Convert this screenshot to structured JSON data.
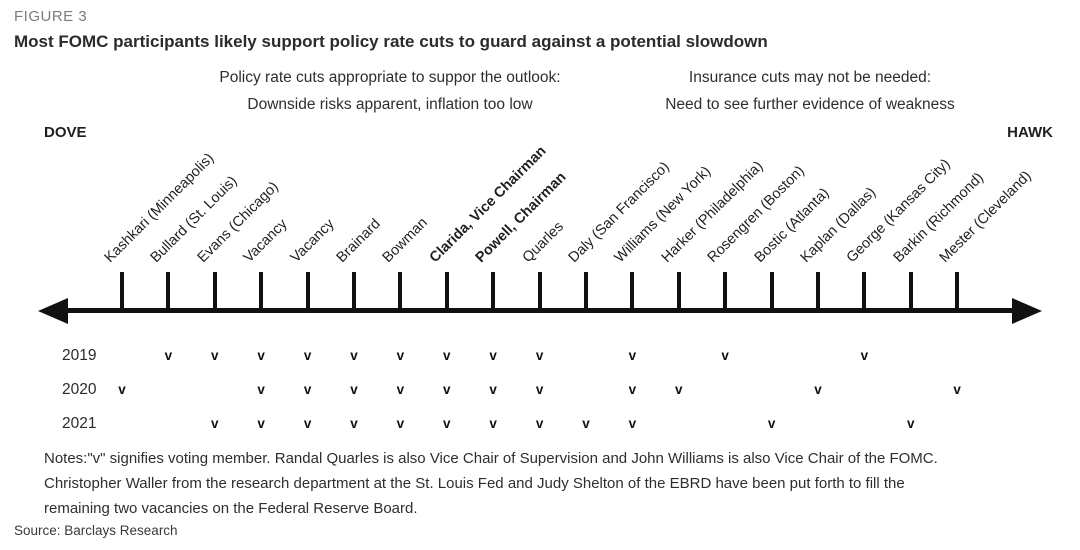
{
  "figure_label": "FIGURE 3",
  "title": "Most FOMC participants likely support policy rate cuts to guard against a potential slowdown",
  "annotations": {
    "left": {
      "line1": "Policy rate cuts appropriate to suppor the outlook:",
      "line2": "Downside risks apparent, inflation too low"
    },
    "right": {
      "line1": "Insurance cuts may not be needed:",
      "line2": "Need to see further evidence of weakness"
    }
  },
  "chart_data": {
    "type": "table",
    "title": "FOMC participants ordered on a dove-to-hawk policy spectrum with voting membership by year",
    "axis": {
      "left_label": "DOVE",
      "right_label": "HAWK"
    },
    "vote_symbol": "v",
    "participants": [
      {
        "label": "Kashkari (Minneapolis)",
        "bold": false
      },
      {
        "label": "Bullard (St. Louis)",
        "bold": false
      },
      {
        "label": "Evans (Chicago)",
        "bold": false
      },
      {
        "label": "Vacancy",
        "bold": false
      },
      {
        "label": "Vacancy",
        "bold": false
      },
      {
        "label": "Brainard",
        "bold": false
      },
      {
        "label": "Bowman",
        "bold": false
      },
      {
        "label": "Clarida, Vice Chairman",
        "bold": true
      },
      {
        "label": "Powell, Chairman",
        "bold": true
      },
      {
        "label": "Quarles",
        "bold": false
      },
      {
        "label": "Daly (San Francisco)",
        "bold": false
      },
      {
        "label": "Williams (New York)",
        "bold": false
      },
      {
        "label": "Harker (Philadelphia)",
        "bold": false
      },
      {
        "label": "Rosengren (Boston)",
        "bold": false
      },
      {
        "label": "Bostic (Atlanta)",
        "bold": false
      },
      {
        "label": "Kaplan (Dallas)",
        "bold": false
      },
      {
        "label": "George (Kansas City)",
        "bold": false
      },
      {
        "label": "Barkin (Richmond)",
        "bold": false
      },
      {
        "label": "Mester (Cleveland)",
        "bold": false
      }
    ],
    "series": [
      {
        "name": "2019",
        "values": [
          0,
          1,
          1,
          1,
          1,
          1,
          1,
          1,
          1,
          1,
          0,
          1,
          0,
          1,
          0,
          0,
          1,
          0,
          0
        ]
      },
      {
        "name": "2020",
        "values": [
          1,
          0,
          0,
          1,
          1,
          1,
          1,
          1,
          1,
          1,
          0,
          1,
          1,
          0,
          0,
          1,
          0,
          0,
          1
        ]
      },
      {
        "name": "2021",
        "values": [
          0,
          0,
          1,
          1,
          1,
          1,
          1,
          1,
          1,
          1,
          1,
          1,
          0,
          0,
          1,
          0,
          0,
          1,
          0
        ]
      }
    ]
  },
  "notes": {
    "lines": [
      "Notes:\"v\" signifies voting member. Randal Quarles is also Vice Chair of Supervision and John Williams is also Vice Chair of the FOMC.",
      "Christopher Waller from the research department at the St. Louis Fed and Judy Shelton of the EBRD have been put forth to fill the",
      "remaining two vacancies on the Federal Reserve Board."
    ]
  },
  "source": "Source: Barclays Research"
}
